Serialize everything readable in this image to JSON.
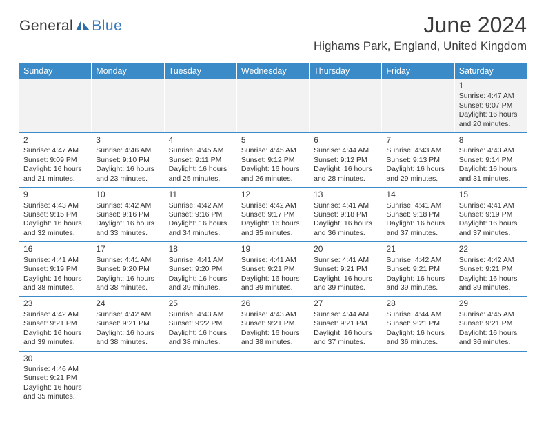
{
  "brand": {
    "part1": "General",
    "part2": "Blue"
  },
  "title": "June 2024",
  "location": "Highams Park, England, United Kingdom",
  "colors": {
    "header_bg": "#3b8bc9",
    "header_text": "#ffffff",
    "alt_row_bg": "#f2f2f2",
    "row_border": "#3b8bc9",
    "text": "#333333",
    "title_color": "#3a3a3a",
    "logo_gray": "#3a3a3a",
    "logo_blue": "#3a7bbf",
    "background": "#ffffff"
  },
  "typography": {
    "month_title_fontsize": 32,
    "location_fontsize": 17,
    "dayhead_fontsize": 12.5,
    "daynum_fontsize": 12,
    "body_fontsize": 10.5,
    "logo_fontsize": 21
  },
  "day_headers": [
    "Sunday",
    "Monday",
    "Tuesday",
    "Wednesday",
    "Thursday",
    "Friday",
    "Saturday"
  ],
  "weeks": [
    {
      "alt": true,
      "cells": [
        {
          "empty": true
        },
        {
          "empty": true
        },
        {
          "empty": true
        },
        {
          "empty": true
        },
        {
          "empty": true
        },
        {
          "empty": true
        },
        {
          "num": "1",
          "sunrise": "Sunrise: 4:47 AM",
          "sunset": "Sunset: 9:07 PM",
          "day1": "Daylight: 16 hours",
          "day2": "and 20 minutes."
        }
      ]
    },
    {
      "alt": false,
      "cells": [
        {
          "num": "2",
          "sunrise": "Sunrise: 4:47 AM",
          "sunset": "Sunset: 9:09 PM",
          "day1": "Daylight: 16 hours",
          "day2": "and 21 minutes."
        },
        {
          "num": "3",
          "sunrise": "Sunrise: 4:46 AM",
          "sunset": "Sunset: 9:10 PM",
          "day1": "Daylight: 16 hours",
          "day2": "and 23 minutes."
        },
        {
          "num": "4",
          "sunrise": "Sunrise: 4:45 AM",
          "sunset": "Sunset: 9:11 PM",
          "day1": "Daylight: 16 hours",
          "day2": "and 25 minutes."
        },
        {
          "num": "5",
          "sunrise": "Sunrise: 4:45 AM",
          "sunset": "Sunset: 9:12 PM",
          "day1": "Daylight: 16 hours",
          "day2": "and 26 minutes."
        },
        {
          "num": "6",
          "sunrise": "Sunrise: 4:44 AM",
          "sunset": "Sunset: 9:12 PM",
          "day1": "Daylight: 16 hours",
          "day2": "and 28 minutes."
        },
        {
          "num": "7",
          "sunrise": "Sunrise: 4:43 AM",
          "sunset": "Sunset: 9:13 PM",
          "day1": "Daylight: 16 hours",
          "day2": "and 29 minutes."
        },
        {
          "num": "8",
          "sunrise": "Sunrise: 4:43 AM",
          "sunset": "Sunset: 9:14 PM",
          "day1": "Daylight: 16 hours",
          "day2": "and 31 minutes."
        }
      ]
    },
    {
      "alt": false,
      "cells": [
        {
          "num": "9",
          "sunrise": "Sunrise: 4:43 AM",
          "sunset": "Sunset: 9:15 PM",
          "day1": "Daylight: 16 hours",
          "day2": "and 32 minutes."
        },
        {
          "num": "10",
          "sunrise": "Sunrise: 4:42 AM",
          "sunset": "Sunset: 9:16 PM",
          "day1": "Daylight: 16 hours",
          "day2": "and 33 minutes."
        },
        {
          "num": "11",
          "sunrise": "Sunrise: 4:42 AM",
          "sunset": "Sunset: 9:16 PM",
          "day1": "Daylight: 16 hours",
          "day2": "and 34 minutes."
        },
        {
          "num": "12",
          "sunrise": "Sunrise: 4:42 AM",
          "sunset": "Sunset: 9:17 PM",
          "day1": "Daylight: 16 hours",
          "day2": "and 35 minutes."
        },
        {
          "num": "13",
          "sunrise": "Sunrise: 4:41 AM",
          "sunset": "Sunset: 9:18 PM",
          "day1": "Daylight: 16 hours",
          "day2": "and 36 minutes."
        },
        {
          "num": "14",
          "sunrise": "Sunrise: 4:41 AM",
          "sunset": "Sunset: 9:18 PM",
          "day1": "Daylight: 16 hours",
          "day2": "and 37 minutes."
        },
        {
          "num": "15",
          "sunrise": "Sunrise: 4:41 AM",
          "sunset": "Sunset: 9:19 PM",
          "day1": "Daylight: 16 hours",
          "day2": "and 37 minutes."
        }
      ]
    },
    {
      "alt": false,
      "cells": [
        {
          "num": "16",
          "sunrise": "Sunrise: 4:41 AM",
          "sunset": "Sunset: 9:19 PM",
          "day1": "Daylight: 16 hours",
          "day2": "and 38 minutes."
        },
        {
          "num": "17",
          "sunrise": "Sunrise: 4:41 AM",
          "sunset": "Sunset: 9:20 PM",
          "day1": "Daylight: 16 hours",
          "day2": "and 38 minutes."
        },
        {
          "num": "18",
          "sunrise": "Sunrise: 4:41 AM",
          "sunset": "Sunset: 9:20 PM",
          "day1": "Daylight: 16 hours",
          "day2": "and 39 minutes."
        },
        {
          "num": "19",
          "sunrise": "Sunrise: 4:41 AM",
          "sunset": "Sunset: 9:21 PM",
          "day1": "Daylight: 16 hours",
          "day2": "and 39 minutes."
        },
        {
          "num": "20",
          "sunrise": "Sunrise: 4:41 AM",
          "sunset": "Sunset: 9:21 PM",
          "day1": "Daylight: 16 hours",
          "day2": "and 39 minutes."
        },
        {
          "num": "21",
          "sunrise": "Sunrise: 4:42 AM",
          "sunset": "Sunset: 9:21 PM",
          "day1": "Daylight: 16 hours",
          "day2": "and 39 minutes."
        },
        {
          "num": "22",
          "sunrise": "Sunrise: 4:42 AM",
          "sunset": "Sunset: 9:21 PM",
          "day1": "Daylight: 16 hours",
          "day2": "and 39 minutes."
        }
      ]
    },
    {
      "alt": false,
      "cells": [
        {
          "num": "23",
          "sunrise": "Sunrise: 4:42 AM",
          "sunset": "Sunset: 9:21 PM",
          "day1": "Daylight: 16 hours",
          "day2": "and 39 minutes."
        },
        {
          "num": "24",
          "sunrise": "Sunrise: 4:42 AM",
          "sunset": "Sunset: 9:21 PM",
          "day1": "Daylight: 16 hours",
          "day2": "and 38 minutes."
        },
        {
          "num": "25",
          "sunrise": "Sunrise: 4:43 AM",
          "sunset": "Sunset: 9:22 PM",
          "day1": "Daylight: 16 hours",
          "day2": "and 38 minutes."
        },
        {
          "num": "26",
          "sunrise": "Sunrise: 4:43 AM",
          "sunset": "Sunset: 9:21 PM",
          "day1": "Daylight: 16 hours",
          "day2": "and 38 minutes."
        },
        {
          "num": "27",
          "sunrise": "Sunrise: 4:44 AM",
          "sunset": "Sunset: 9:21 PM",
          "day1": "Daylight: 16 hours",
          "day2": "and 37 minutes."
        },
        {
          "num": "28",
          "sunrise": "Sunrise: 4:44 AM",
          "sunset": "Sunset: 9:21 PM",
          "day1": "Daylight: 16 hours",
          "day2": "and 36 minutes."
        },
        {
          "num": "29",
          "sunrise": "Sunrise: 4:45 AM",
          "sunset": "Sunset: 9:21 PM",
          "day1": "Daylight: 16 hours",
          "day2": "and 36 minutes."
        }
      ]
    },
    {
      "alt": false,
      "last": true,
      "cells": [
        {
          "num": "30",
          "sunrise": "Sunrise: 4:46 AM",
          "sunset": "Sunset: 9:21 PM",
          "day1": "Daylight: 16 hours",
          "day2": "and 35 minutes."
        },
        {
          "empty": true
        },
        {
          "empty": true
        },
        {
          "empty": true
        },
        {
          "empty": true
        },
        {
          "empty": true
        },
        {
          "empty": true
        }
      ]
    }
  ]
}
